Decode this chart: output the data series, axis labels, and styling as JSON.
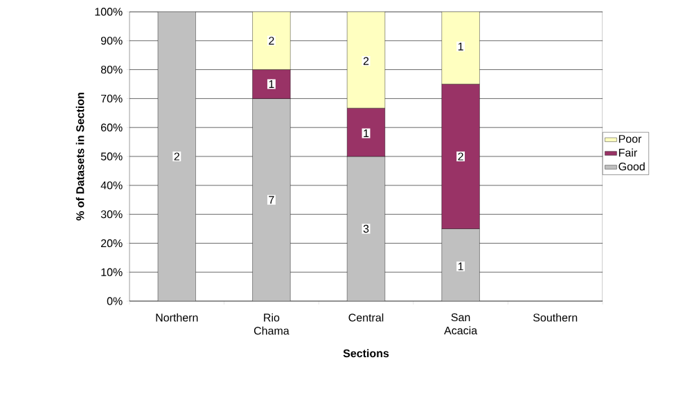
{
  "chart_data": {
    "type": "bar",
    "stacked": true,
    "xlabel": "Sections",
    "ylabel": "% of Datasets in Section",
    "categories": [
      "Northern",
      "Rio Chama",
      "Central",
      "San Acacia",
      "Southern"
    ],
    "series": [
      {
        "name": "Good",
        "color": "#c0c0c0",
        "values": [
          100,
          70,
          50,
          25,
          null
        ]
      },
      {
        "name": "Fair",
        "color": "#993366",
        "values": [
          null,
          10,
          16.7,
          50,
          null
        ]
      },
      {
        "name": "Poor",
        "color": "#ffffc0",
        "values": [
          null,
          20,
          33.3,
          25,
          null
        ]
      }
    ],
    "annotations": [
      {
        "text": "2",
        "x": "Northern",
        "y": 50
      },
      {
        "text": "7",
        "x": "Rio Chama",
        "y": 35
      },
      {
        "text": "1",
        "x": "Rio Chama",
        "y": 75
      },
      {
        "text": "2",
        "x": "Rio Chama",
        "y": 90
      },
      {
        "text": "3",
        "x": "Central",
        "y": 25
      },
      {
        "text": "1",
        "x": "Central",
        "y": 58
      },
      {
        "text": "2",
        "x": "Central",
        "y": 83
      },
      {
        "text": "1",
        "x": "San Acacia",
        "y": 12
      },
      {
        "text": "2",
        "x": "San Acacia",
        "y": 50
      },
      {
        "text": "1",
        "x": "San Acacia",
        "y": 88
      }
    ],
    "ylim": [
      0,
      100
    ],
    "yticks": [
      {
        "value": 0,
        "label": "0%"
      },
      {
        "value": 10,
        "label": "10%"
      },
      {
        "value": 20,
        "label": "20%"
      },
      {
        "value": 30,
        "label": "30%"
      },
      {
        "value": 40,
        "label": "40%"
      },
      {
        "value": 50,
        "label": "50%"
      },
      {
        "value": 60,
        "label": "60%"
      },
      {
        "value": 70,
        "label": "70%"
      },
      {
        "value": 80,
        "label": "80%"
      },
      {
        "value": 90,
        "label": "90%"
      },
      {
        "value": 100,
        "label": "100%"
      }
    ],
    "grid": "y",
    "legend": "right"
  }
}
